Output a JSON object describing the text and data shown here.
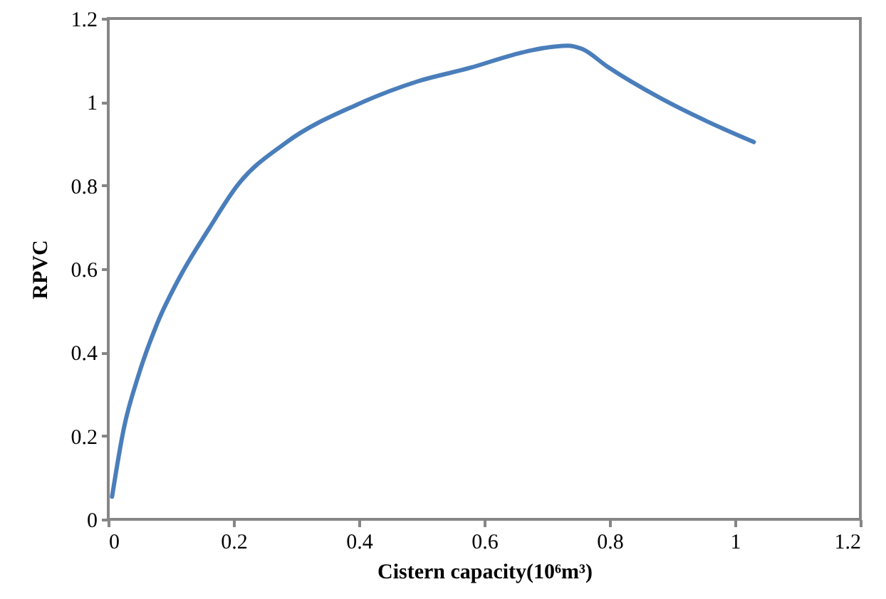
{
  "chart_data": {
    "type": "line",
    "xlabel": "Cistern capacity(10⁶m³)",
    "ylabel": "RPVC",
    "x": [
      0.006,
      0.025,
      0.048,
      0.078,
      0.115,
      0.161,
      0.206,
      0.283,
      0.396,
      0.495,
      0.578,
      0.646,
      0.676,
      0.733,
      0.756,
      0.797,
      0.88,
      0.956,
      1.03
    ],
    "series": [
      {
        "color": "#4a7ebb",
        "values": [
          0.054,
          0.219,
          0.344,
          0.469,
          0.583,
          0.697,
          0.8,
          0.902,
          0.993,
          1.05,
          1.082,
          1.113,
          1.124,
          1.135,
          1.127,
          1.084,
          1.01,
          0.953,
          0.904
        ]
      }
    ],
    "xlim": [
      0,
      1.2
    ],
    "xticks": [
      0,
      0.2,
      0.4,
      0.6,
      0.8,
      1,
      1.2
    ],
    "ylim": [
      0,
      1.2
    ],
    "yticks": [
      0,
      0.2,
      0.4,
      0.6,
      0.8,
      1,
      1.2
    ],
    "grid": false,
    "marker": "none",
    "line_style": "solid"
  }
}
